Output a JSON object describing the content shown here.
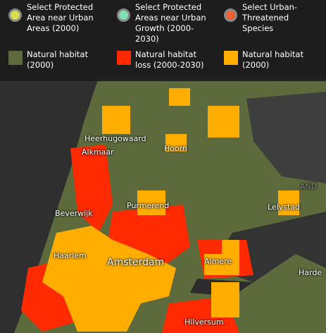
{
  "legend": [
    {
      "label": "Select Protected Area near Urban Areas (2000)",
      "shape": "circle",
      "color": "#d6e04c"
    },
    {
      "label": "Select Protected Areas near Urban Growth (2000-2030)",
      "shape": "circle",
      "color": "#7fe0b2"
    },
    {
      "label": "Select Urban-Threatened Species",
      "shape": "circle",
      "color": "#ee6233"
    },
    {
      "label": "Natural habitat (2000)",
      "shape": "square",
      "color": "#5d6a3b"
    },
    {
      "label": "Natural habitat loss (2000-2030)",
      "shape": "square",
      "color": "#ff2a00"
    },
    {
      "label": "Natural habitat (2000)",
      "shape": "square",
      "color": "#ffae00"
    }
  ],
  "places": [
    "Heerhugowaard",
    "Alkmaar",
    "Hoorn",
    "Purmerend",
    "Lelystad",
    "Beverwijk",
    "Haarlem",
    "Amsterdam",
    "Almere",
    "Harde",
    "Hilversum",
    "AND"
  ]
}
